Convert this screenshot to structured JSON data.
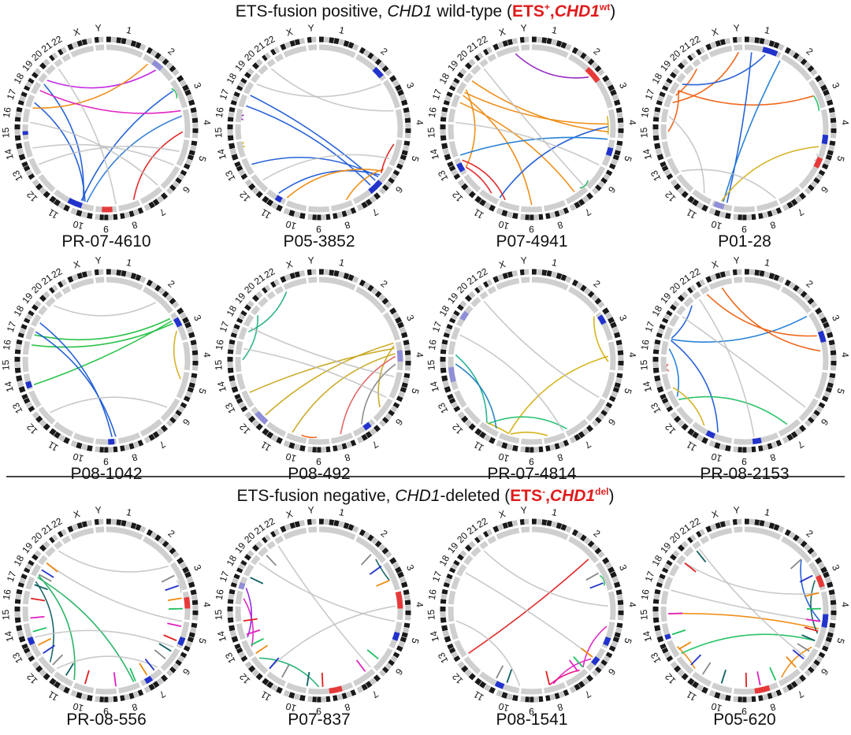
{
  "header_positive": {
    "prefix": "ETS-fusion positive, ",
    "gene": "CHD1",
    "middle": " wild-type (",
    "tag_ets": "ETS",
    "tag_ets_sup": "+",
    "tag_sep": ",",
    "tag_gene": "CHD1",
    "tag_gene_sup": "wt",
    "suffix": ")"
  },
  "header_negative": {
    "prefix": "ETS-fusion negative, ",
    "gene": "CHD1",
    "middle": "-deleted (",
    "tag_ets": "ETS",
    "tag_ets_sup": "-",
    "tag_sep": ",",
    "tag_gene": "CHD1",
    "tag_gene_sup": "del",
    "suffix": ")"
  },
  "chromosome_labels": [
    "1",
    "2",
    "3",
    "4",
    "5",
    "6",
    "7",
    "8",
    "9",
    "10",
    "11",
    "12",
    "13",
    "14",
    "15",
    "16",
    "17",
    "18",
    "19",
    "20",
    "21",
    "22",
    "X",
    "Y"
  ],
  "colors": {
    "title_accent": "#e01b1b",
    "ideogram_dark": "#1a1a1a",
    "ideogram_light": "#c8c8c8",
    "deletion_blue": "#2233cc",
    "deletion_lightblue": "#8f8fd8",
    "gain_red": "#e63a3a",
    "link_grey": "#bfbfbf"
  },
  "panels": [
    {
      "name": "PR-07-4610",
      "links": [
        {
          "a": 9.5,
          "b": 16.5,
          "c": "#1e5bd6"
        },
        {
          "a": 9.7,
          "b": 2.3,
          "c": "#1e5bd6"
        },
        {
          "a": 9.6,
          "b": 18.0,
          "c": "#1e5bd6"
        },
        {
          "a": 9.4,
          "b": 3.2,
          "c": "#2e7bd6"
        },
        {
          "a": 7.2,
          "b": 3.8,
          "c": "#e02020"
        },
        {
          "a": 1.5,
          "b": 18.6,
          "c": "#c020e0"
        },
        {
          "a": 1.2,
          "b": 16.0,
          "c": "#ee8a10"
        },
        {
          "a": 2.2,
          "b": 2.6,
          "c": "#20c060"
        },
        {
          "a": 17.5,
          "b": 3.0,
          "c": "#e020c0"
        },
        {
          "a": 12.5,
          "b": 4.5,
          "c": "#bbbbbb"
        },
        {
          "a": 6.0,
          "b": 15.0,
          "c": "#bbbbbb"
        },
        {
          "a": 20.0,
          "b": 8.0,
          "c": "#bbbbbb"
        },
        {
          "a": 5.0,
          "b": 13.5,
          "c": "#bbbbbb"
        }
      ],
      "bands": [
        {
          "p": 8.2,
          "w": 0.5,
          "c": "#e63a3a"
        },
        {
          "p": 9.6,
          "w": 0.6,
          "c": "#2233cc"
        },
        {
          "p": 14.3,
          "w": 0.25,
          "c": "#2233cc"
        },
        {
          "p": 1.3,
          "w": 0.3,
          "c": "#8f8fd8"
        }
      ]
    },
    {
      "name": "P05-3852",
      "links": [
        {
          "a": 5.8,
          "b": 17.0,
          "c": "#1e5bd6"
        },
        {
          "a": 5.6,
          "b": 12.5,
          "c": "#1e5bd6"
        },
        {
          "a": 6.0,
          "b": 16.2,
          "c": "#1e5bd6"
        },
        {
          "a": 5.5,
          "b": 10.5,
          "c": "#1e5bd6"
        },
        {
          "a": 5.2,
          "b": 7.2,
          "c": "#ee8a10"
        },
        {
          "a": 5.3,
          "b": 10.0,
          "c": "#ee8a10"
        },
        {
          "a": 5.4,
          "b": 4.2,
          "c": "#e02020"
        },
        {
          "a": 15.2,
          "b": 15.6,
          "c": "#9020c0"
        },
        {
          "a": 13.6,
          "b": 13.9,
          "c": "#d4b020"
        },
        {
          "a": 2.0,
          "b": 18.0,
          "c": "#bbbbbb"
        },
        {
          "a": 3.0,
          "b": 20.0,
          "c": "#bbbbbb"
        },
        {
          "a": 11.5,
          "b": 4.8,
          "c": "#bbbbbb"
        }
      ],
      "bands": [
        {
          "p": 5.7,
          "w": 0.5,
          "c": "#2233cc"
        },
        {
          "p": 10.2,
          "w": 0.3,
          "c": "#2233cc"
        },
        {
          "p": 1.6,
          "w": 0.3,
          "c": "#2233cc"
        }
      ]
    },
    {
      "name": "P07-4941",
      "links": [
        {
          "a": 17.3,
          "b": 3.5,
          "c": "#ee8a10"
        },
        {
          "a": 17.0,
          "b": 8.5,
          "c": "#ee8a10"
        },
        {
          "a": 18.5,
          "b": 3.8,
          "c": "#ee8a10"
        },
        {
          "a": 16.5,
          "b": 6.5,
          "c": "#ee8a10"
        },
        {
          "a": 17.6,
          "b": 12.3,
          "c": "#ee8a10"
        },
        {
          "a": 3.6,
          "b": 10.0,
          "c": "#1e5bd6"
        },
        {
          "a": 4.0,
          "b": 13.0,
          "c": "#1e7bd6"
        },
        {
          "a": 12.3,
          "b": 10.5,
          "c": "#e02020"
        },
        {
          "a": 12.8,
          "b": 9.8,
          "c": "#e02020"
        },
        {
          "a": 5.8,
          "b": 6.2,
          "c": "#20b060"
        },
        {
          "a": 1.8,
          "b": 22.8,
          "c": "#9020c0"
        },
        {
          "a": 3.9,
          "b": 3.2,
          "c": "#d4b020"
        },
        {
          "a": 20.0,
          "b": 6.0,
          "c": "#bbbbbb"
        },
        {
          "a": 15.0,
          "b": 5.0,
          "c": "#bbbbbb"
        }
      ],
      "bands": [
        {
          "p": 1.6,
          "w": 0.4,
          "c": "#e63a3a"
        },
        {
          "p": 4.3,
          "w": 0.3,
          "c": "#2233cc"
        },
        {
          "p": 12.2,
          "w": 0.5,
          "c": "#2233cc"
        }
      ]
    },
    {
      "name": "P01-28",
      "links": [
        {
          "a": 17.5,
          "b": 2.5,
          "c": "#ee6010"
        },
        {
          "a": 16.5,
          "b": 23.5,
          "c": "#ee6010"
        },
        {
          "a": 17.0,
          "b": 20.0,
          "c": "#ee6010"
        },
        {
          "a": 14.5,
          "b": 17.5,
          "c": "#ee6010"
        },
        {
          "a": 9.3,
          "b": 0.2,
          "c": "#1e5bd6"
        },
        {
          "a": 9.5,
          "b": 1.0,
          "c": "#1e7bd6"
        },
        {
          "a": 18.0,
          "b": 0.6,
          "c": "#1e5bd6"
        },
        {
          "a": 9.6,
          "b": 4.3,
          "c": "#d4b020"
        },
        {
          "a": 2.5,
          "b": 3.0,
          "c": "#20c060"
        },
        {
          "a": 4.6,
          "b": 4.9,
          "c": "#bbbbbb"
        },
        {
          "a": 7.0,
          "b": 12.0,
          "c": "#bbbbbb"
        },
        {
          "a": 10.5,
          "b": 15.5,
          "c": "#bbbbbb"
        }
      ],
      "bands": [
        {
          "p": 0.5,
          "w": 0.4,
          "c": "#2233cc"
        },
        {
          "p": 3.9,
          "w": 0.25,
          "c": "#2233cc"
        },
        {
          "p": 4.7,
          "w": 0.3,
          "c": "#e63a3a"
        },
        {
          "p": 9.4,
          "w": 0.5,
          "c": "#8f8fd8"
        }
      ]
    },
    {
      "name": "P08-1042",
      "links": [
        {
          "a": 2.2,
          "b": 13.2,
          "c": "#20c040"
        },
        {
          "a": 2.3,
          "b": 15.8,
          "c": "#20c040"
        },
        {
          "a": 2.1,
          "b": 16.5,
          "c": "#20c040"
        },
        {
          "a": 8.0,
          "b": 16.8,
          "c": "#1e5bd6"
        },
        {
          "a": 8.2,
          "b": 17.5,
          "c": "#1e5bd6"
        },
        {
          "a": 2.6,
          "b": 4.3,
          "c": "#d4b020"
        },
        {
          "a": 11.5,
          "b": 5.5,
          "c": "#bbbbbb"
        },
        {
          "a": 19.5,
          "b": 1.5,
          "c": "#bbbbbb"
        }
      ],
      "bands": [
        {
          "p": 13.1,
          "w": 0.4,
          "c": "#2233cc"
        },
        {
          "p": 2.2,
          "w": 0.3,
          "c": "#2233cc"
        },
        {
          "p": 8.1,
          "w": 0.3,
          "c": "#2233cc"
        }
      ]
    },
    {
      "name": "P08-492",
      "links": [
        {
          "a": 3.2,
          "b": 12.8,
          "c": "#c8a820"
        },
        {
          "a": 3.0,
          "b": 11.3,
          "c": "#c8a820"
        },
        {
          "a": 3.4,
          "b": 9.8,
          "c": "#c8a820"
        },
        {
          "a": 3.1,
          "b": 5.5,
          "c": "#c8a820"
        },
        {
          "a": 18.2,
          "b": 14.8,
          "c": "#20b080"
        },
        {
          "a": 22.0,
          "b": 16.8,
          "c": "#20b080"
        },
        {
          "a": 8.6,
          "b": 9.3,
          "c": "#ee6010"
        },
        {
          "a": 3.5,
          "b": 7.5,
          "c": "#e06060"
        },
        {
          "a": 3.8,
          "b": 6.5,
          "c": "#888888"
        },
        {
          "a": 17.0,
          "b": 4.2,
          "c": "#bbbbbb"
        },
        {
          "a": 15.5,
          "b": 5.0,
          "c": "#bbbbbb"
        }
      ],
      "bands": [
        {
          "p": 3.3,
          "w": 0.4,
          "c": "#8f8fd8"
        },
        {
          "p": 11.0,
          "w": 0.7,
          "c": "#8f8fd8"
        },
        {
          "p": 6.2,
          "w": 0.3,
          "c": "#2233cc"
        }
      ]
    },
    {
      "name": "PR-07-4814",
      "links": [
        {
          "a": 3.5,
          "b": 9.6,
          "c": "#d4b010"
        },
        {
          "a": 3.7,
          "b": 2.0,
          "c": "#d4b010"
        },
        {
          "a": 9.5,
          "b": 7.8,
          "c": "#d4b010"
        },
        {
          "a": 9.6,
          "b": 10.8,
          "c": "#d4b010"
        },
        {
          "a": 10.8,
          "b": 15.0,
          "c": "#20b090"
        },
        {
          "a": 10.7,
          "b": 6.9,
          "c": "#20c070"
        },
        {
          "a": 14.5,
          "b": 10.2,
          "c": "#2080c0"
        },
        {
          "a": 20.0,
          "b": 5.0,
          "c": "#bbbbbb"
        },
        {
          "a": 16.5,
          "b": 7.0,
          "c": "#bbbbbb"
        }
      ],
      "bands": [
        {
          "p": 2.1,
          "w": 0.3,
          "c": "#2233cc"
        },
        {
          "p": 13.5,
          "w": 0.8,
          "c": "#8f8fd8"
        },
        {
          "p": 17.6,
          "w": 0.6,
          "c": "#8f8fd8"
        }
      ]
    },
    {
      "name": "PR-08-2153",
      "links": [
        {
          "a": 16.0,
          "b": 9.8,
          "c": "#1e5bd6"
        },
        {
          "a": 16.2,
          "b": 19.5,
          "c": "#1e5bd6"
        },
        {
          "a": 16.1,
          "b": 2.0,
          "c": "#1e7bd6"
        },
        {
          "a": 15.5,
          "b": 12.5,
          "c": "#1e7bd6"
        },
        {
          "a": 21.5,
          "b": 2.8,
          "c": "#ee6010"
        },
        {
          "a": 22.5,
          "b": 3.3,
          "c": "#ee6010"
        },
        {
          "a": 12.3,
          "b": 6.5,
          "c": "#20c060"
        },
        {
          "a": 10.5,
          "b": 13.0,
          "c": "#d4b020"
        },
        {
          "a": 14.0,
          "b": 14.5,
          "c": "#e06060"
        },
        {
          "a": 18.0,
          "b": 5.5,
          "c": "#bbbbbb"
        },
        {
          "a": 20.5,
          "b": 8.0,
          "c": "#bbbbbb"
        }
      ],
      "bands": [
        {
          "p": 2.7,
          "w": 0.3,
          "c": "#2233cc"
        },
        {
          "p": 9.9,
          "w": 0.3,
          "c": "#2233cc"
        },
        {
          "p": 7.8,
          "w": 0.3,
          "c": "#2233cc"
        }
      ]
    },
    {
      "name": "PR-08-556",
      "links": [
        {
          "a": 17.0,
          "b": 7.2,
          "c": "#20b060"
        },
        {
          "a": 17.2,
          "b": 10.0,
          "c": "#20b060"
        },
        {
          "a": 16.8,
          "b": 11.5,
          "c": "#106060"
        },
        {
          "a": 3.0,
          "b": 2.6,
          "c": "#bbbbbb"
        },
        {
          "a": 13.0,
          "b": 5.0,
          "c": "#bbbbbb"
        },
        {
          "a": 18.5,
          "b": 4.0,
          "c": "#bbbbbb"
        },
        {
          "a": 20.0,
          "b": 2.0,
          "c": "#bbbbbb"
        },
        {
          "a": 11.0,
          "b": 6.0,
          "c": "#bbbbbb"
        }
      ],
      "bands": [
        {
          "p": 3.2,
          "w": 0.4,
          "c": "#e63a3a"
        },
        {
          "p": 4.6,
          "w": 0.3,
          "c": "#2233cc"
        },
        {
          "p": 6.5,
          "w": 0.3,
          "c": "#2233cc"
        },
        {
          "p": 12.8,
          "w": 0.3,
          "c": "#2233cc"
        }
      ],
      "spikes": [
        2.4,
        2.8,
        3.2,
        3.6,
        4.2,
        4.8,
        5.2,
        5.6,
        6.2,
        6.6,
        7.1,
        8.0,
        9.5,
        10.5,
        11.3,
        12.0,
        12.6,
        13.4,
        14.2,
        15.5,
        16.5,
        17.3,
        17.8,
        18.5
      ]
    },
    {
      "name": "P07-837",
      "links": [
        {
          "a": 15.5,
          "b": 12.5,
          "c": "#e020c0"
        },
        {
          "a": 16.2,
          "b": 13.0,
          "c": "#9020e0"
        },
        {
          "a": 11.8,
          "b": 8.5,
          "c": "#20b070"
        },
        {
          "a": 1.8,
          "b": 2.6,
          "c": "#106060"
        },
        {
          "a": 18.5,
          "b": 4.0,
          "c": "#bbbbbb"
        },
        {
          "a": 21.0,
          "b": 6.0,
          "c": "#bbbbbb"
        },
        {
          "a": 11.0,
          "b": 3.5,
          "c": "#bbbbbb"
        }
      ],
      "bands": [
        {
          "p": 3.0,
          "w": 0.6,
          "c": "#e63a3a"
        },
        {
          "p": 7.5,
          "w": 0.5,
          "c": "#e63a3a"
        },
        {
          "p": 4.4,
          "w": 0.3,
          "c": "#2233cc"
        },
        {
          "p": 16.0,
          "w": 0.5,
          "c": "#8f8fd8"
        }
      ],
      "spikes": [
        1.6,
        2.0,
        2.6,
        5.6,
        6.3,
        8.3,
        9.0,
        10.3,
        11.0,
        12.0,
        12.6,
        13.2,
        14.0,
        17.0,
        19.5
      ]
    },
    {
      "name": "P08-1541",
      "links": [
        {
          "a": 12.0,
          "b": 1.8,
          "c": "#e02020"
        },
        {
          "a": 6.0,
          "b": 4.2,
          "c": "#e020c0"
        },
        {
          "a": 5.6,
          "b": 7.5,
          "c": "#e020c0"
        },
        {
          "a": 7.7,
          "b": 6.2,
          "c": "#ee1080"
        },
        {
          "a": 2.4,
          "b": 2.8,
          "c": "#20c060"
        },
        {
          "a": 17.5,
          "b": 5.5,
          "c": "#bbbbbb"
        },
        {
          "a": 20.0,
          "b": 3.5,
          "c": "#bbbbbb"
        },
        {
          "a": 14.0,
          "b": 9.0,
          "c": "#bbbbbb"
        }
      ],
      "bands": [
        {
          "p": 4.6,
          "w": 0.3,
          "c": "#2233cc"
        },
        {
          "p": 5.4,
          "w": 0.3,
          "c": "#2233cc"
        },
        {
          "p": 9.8,
          "w": 0.3,
          "c": "#2233cc"
        }
      ],
      "spikes": [
        2.3,
        2.7,
        5.5,
        6.0,
        6.3,
        7.7,
        9.7,
        10.2
      ]
    },
    {
      "name": "P05-620",
      "links": [
        {
          "a": 4.3,
          "b": 14.5,
          "c": "#ee8a10"
        },
        {
          "a": 4.0,
          "b": 1.8,
          "c": "#1e5bd6"
        },
        {
          "a": 4.5,
          "b": 2.6,
          "c": "#106060"
        },
        {
          "a": 5.0,
          "b": 6.8,
          "c": "#ee8a10"
        },
        {
          "a": 12.5,
          "b": 11.0,
          "c": "#ee8a10"
        },
        {
          "a": 4.8,
          "b": 12.0,
          "c": "#20c060"
        },
        {
          "a": 18.5,
          "b": 3.0,
          "c": "#bbbbbb"
        },
        {
          "a": 20.5,
          "b": 5.5,
          "c": "#bbbbbb"
        },
        {
          "a": 16.0,
          "b": 4.0,
          "c": "#bbbbbb"
        }
      ],
      "bands": [
        {
          "p": 7.4,
          "w": 0.6,
          "c": "#e63a3a"
        },
        {
          "p": 2.5,
          "w": 0.4,
          "c": "#e63a3a"
        },
        {
          "p": 3.8,
          "w": 0.4,
          "c": "#2233cc"
        },
        {
          "p": 13.0,
          "w": 0.3,
          "c": "#2233cc"
        }
      ],
      "spikes": [
        1.8,
        2.4,
        3.0,
        3.6,
        4.0,
        4.4,
        4.8,
        5.2,
        5.6,
        6.0,
        7.0,
        7.8,
        8.4,
        9.6,
        10.6,
        11.3,
        12.3,
        13.2,
        14.5,
        18.5,
        20.0
      ]
    }
  ]
}
